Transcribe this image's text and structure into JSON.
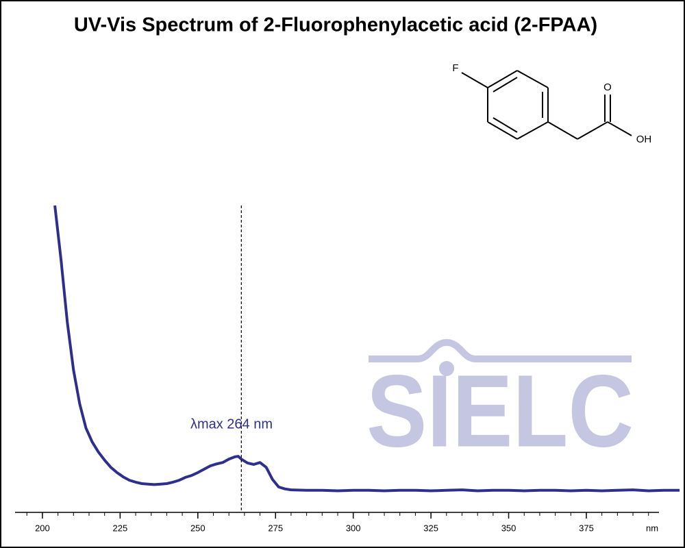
{
  "chart_data": {
    "type": "line",
    "title": "UV-Vis Spectrum of 2-Fluorophenylacetic acid (2-FPAA)",
    "x": [
      204,
      206,
      208,
      210,
      212,
      214,
      216,
      218,
      220,
      222,
      224,
      226,
      228,
      230,
      232,
      234,
      236,
      238,
      240,
      242,
      244,
      246,
      248,
      250,
      252,
      254,
      256,
      258,
      260,
      262,
      263,
      264,
      266,
      268,
      270,
      272,
      274,
      276,
      278,
      280,
      285,
      290,
      295,
      300,
      305,
      310,
      315,
      320,
      325,
      330,
      335,
      340,
      345,
      350,
      355,
      360,
      365,
      370,
      375,
      380,
      385,
      390,
      395,
      400,
      405
    ],
    "series": [
      {
        "color": "#2e2e8f",
        "values": [
          0.64,
          0.526,
          0.397,
          0.297,
          0.226,
          0.176,
          0.147,
          0.126,
          0.109,
          0.094,
          0.083,
          0.074,
          0.067,
          0.063,
          0.06,
          0.059,
          0.058,
          0.059,
          0.06,
          0.063,
          0.067,
          0.073,
          0.077,
          0.083,
          0.09,
          0.097,
          0.101,
          0.104,
          0.111,
          0.116,
          0.117,
          0.111,
          0.103,
          0.1,
          0.104,
          0.094,
          0.069,
          0.053,
          0.049,
          0.047,
          0.046,
          0.046,
          0.045,
          0.046,
          0.046,
          0.045,
          0.046,
          0.046,
          0.045,
          0.046,
          0.047,
          0.045,
          0.046,
          0.046,
          0.045,
          0.046,
          0.046,
          0.045,
          0.046,
          0.045,
          0.046,
          0.047,
          0.045,
          0.046,
          0.046
        ]
      }
    ],
    "xlim": [
      191.2,
      406.3
    ],
    "ylim": [
      0,
      1
    ],
    "xticks": [
      200,
      225,
      250,
      275,
      300,
      325,
      350,
      375
    ],
    "x_unit": "nm",
    "annotation": {
      "text": "λmax  264 nm",
      "x": 264
    },
    "structure_labels": [
      "F",
      "O",
      "OH"
    ],
    "watermark": "SIELC"
  }
}
